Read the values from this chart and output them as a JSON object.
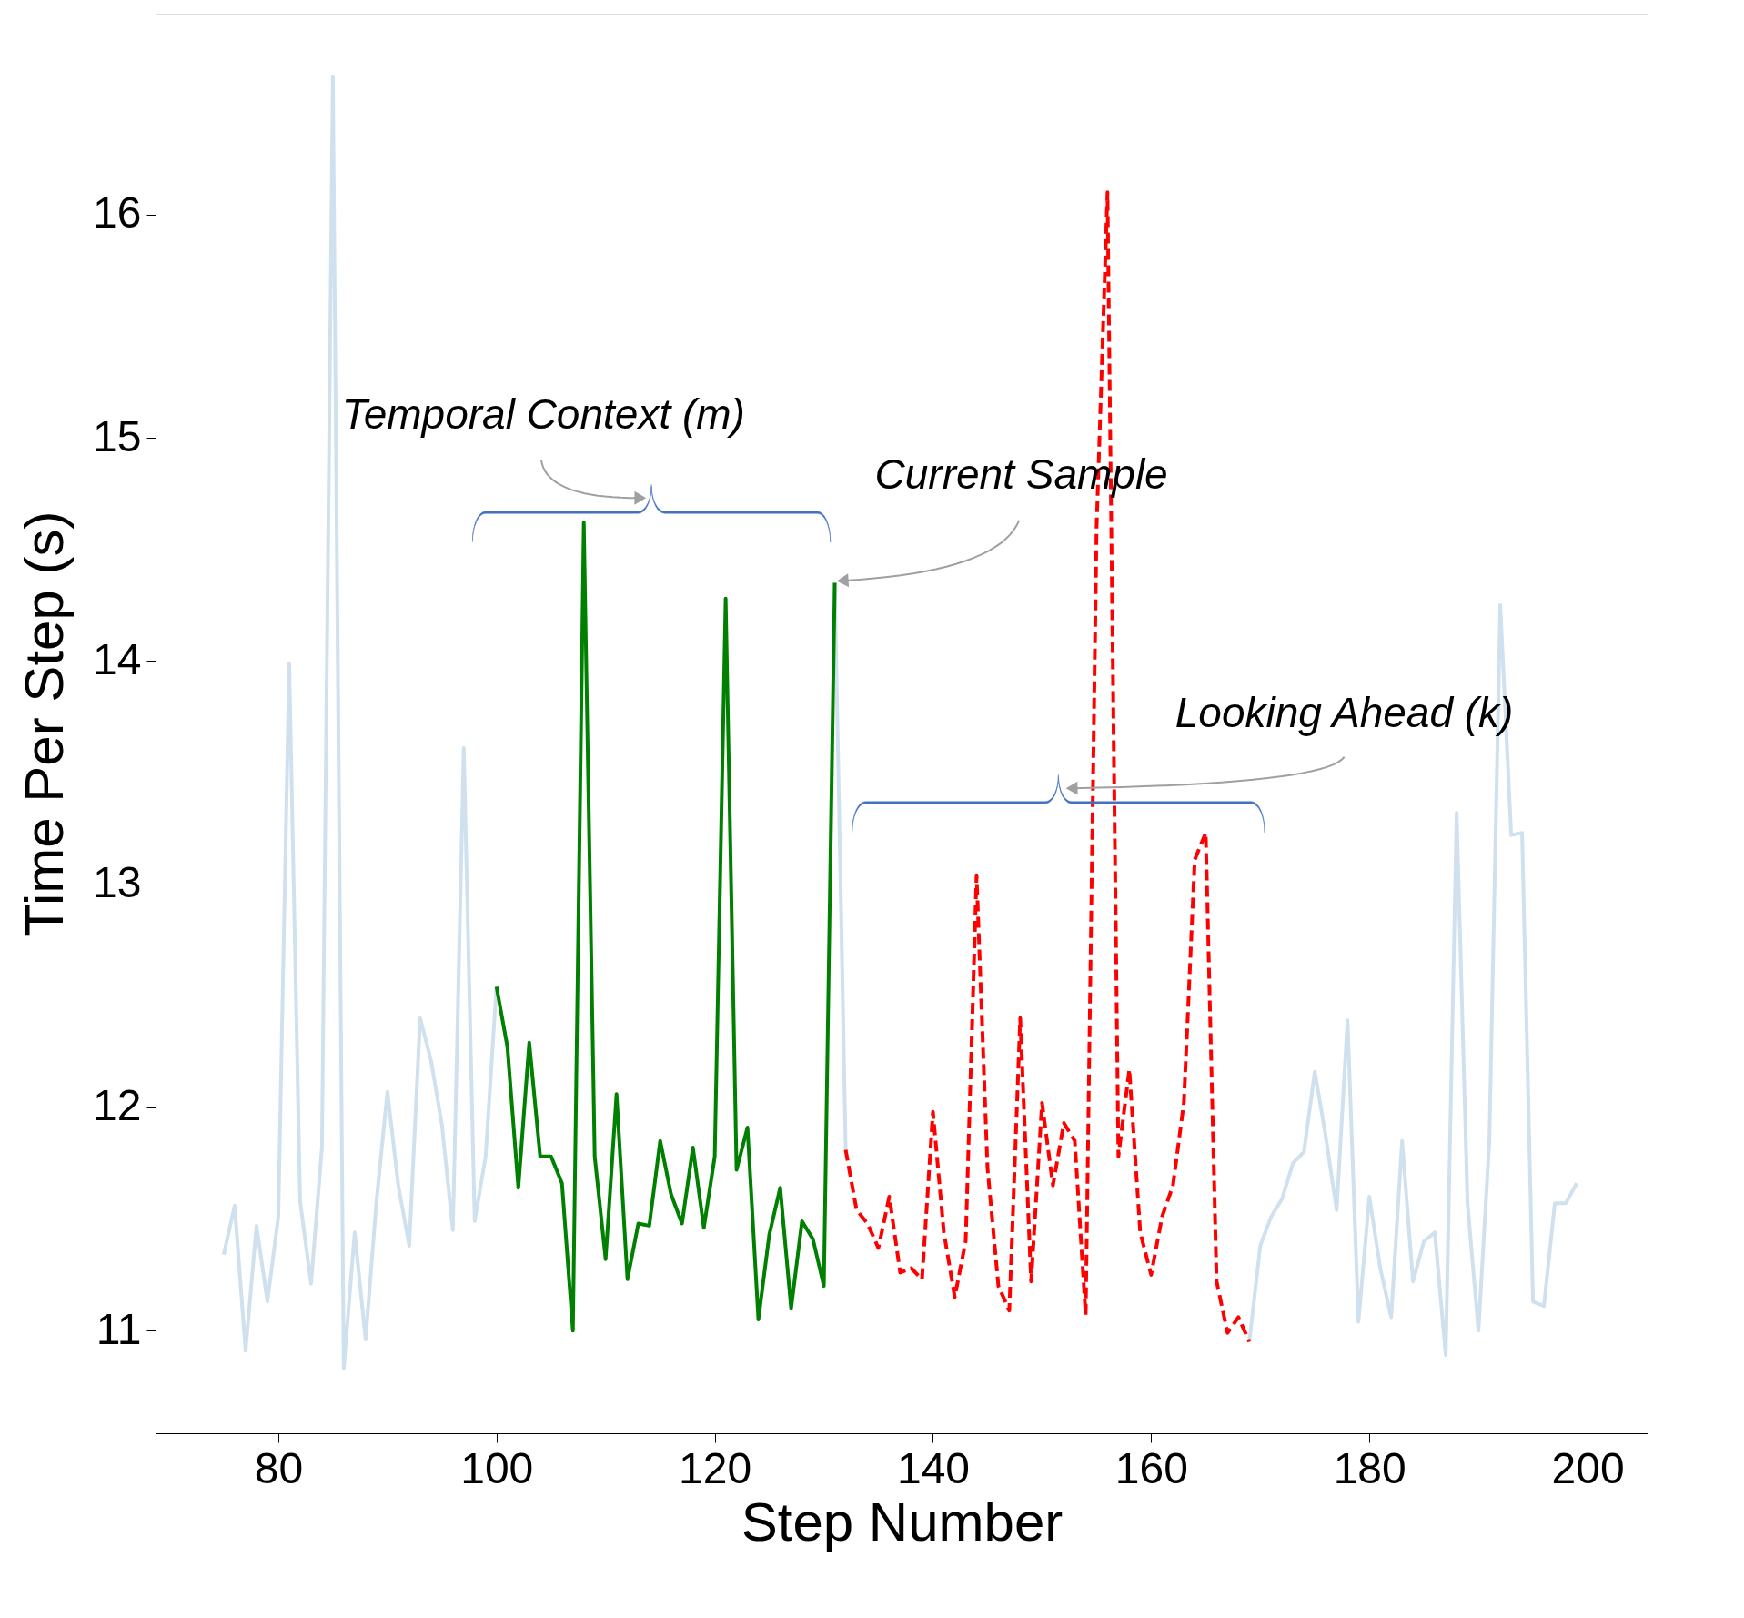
{
  "chart_data": {
    "type": "line",
    "xlabel": "Step Number",
    "ylabel": "Time Per Step (s)",
    "xlim": [
      68.75,
      205.5
    ],
    "ylim": [
      10.54,
      16.9
    ],
    "xticks": [
      80,
      100,
      120,
      140,
      160,
      180,
      200
    ],
    "yticks": [
      11,
      12,
      13,
      14,
      15,
      16
    ],
    "grid": false,
    "series": [
      {
        "color": "#cfe1ee",
        "line_style": "solid",
        "x": [
          75,
          76,
          77,
          78,
          79,
          80,
          81,
          82,
          83,
          84,
          85,
          86,
          87,
          88,
          89,
          90,
          91,
          92,
          93,
          94,
          95,
          96,
          97,
          98,
          99,
          100,
          101,
          102,
          103,
          104,
          105,
          106,
          107,
          108,
          109,
          110,
          111,
          112,
          113,
          114,
          115,
          116,
          117,
          118,
          119,
          120,
          121,
          122,
          123,
          124,
          125,
          126,
          127,
          128,
          129,
          130,
          131,
          132,
          133,
          134,
          135,
          136,
          137,
          138,
          139,
          140,
          141,
          142,
          143,
          144,
          145,
          146,
          147,
          148,
          149,
          150,
          151,
          152,
          153,
          154,
          155,
          156,
          157,
          158,
          159,
          160,
          161,
          162,
          163,
          164,
          165,
          166,
          167,
          168,
          169,
          170,
          171,
          172,
          173,
          174,
          175,
          176,
          177,
          178,
          179,
          180,
          181,
          182,
          183,
          184,
          185,
          186,
          187,
          188,
          189,
          190,
          191,
          192,
          193,
          194,
          195,
          196,
          197,
          198,
          199
        ],
        "values": [
          11.34,
          11.56,
          10.91,
          11.47,
          11.13,
          11.51,
          13.99,
          11.58,
          11.21,
          11.82,
          16.62,
          10.83,
          11.44,
          10.96,
          11.58,
          12.07,
          11.65,
          11.38,
          12.4,
          12.21,
          11.92,
          11.45,
          13.61,
          11.49,
          11.78,
          12.54,
          null,
          null,
          null,
          null,
          null,
          null,
          null,
          null,
          null,
          null,
          null,
          null,
          null,
          null,
          null,
          null,
          null,
          null,
          null,
          null,
          null,
          null,
          null,
          null,
          null,
          null,
          null,
          null,
          null,
          null,
          14.35,
          11.81,
          null,
          null,
          null,
          null,
          null,
          null,
          null,
          null,
          null,
          null,
          null,
          null,
          null,
          null,
          null,
          null,
          null,
          null,
          null,
          null,
          null,
          null,
          null,
          null,
          null,
          null,
          null,
          null,
          null,
          null,
          null,
          null,
          null,
          null,
          null,
          null,
          10.95,
          11.38,
          11.51,
          11.59,
          11.75,
          11.8,
          12.16,
          11.87,
          11.54,
          12.39,
          11.04,
          11.6,
          11.28,
          11.06,
          11.85,
          11.22,
          11.4,
          11.44,
          10.89,
          13.32,
          11.57,
          11.0,
          11.85,
          14.25,
          13.22,
          13.23,
          11.13,
          11.11,
          11.57,
          11.57,
          11.66
        ]
      },
      {
        "color": "#008000",
        "line_style": "solid",
        "x": [
          100,
          101,
          102,
          103,
          104,
          105,
          106,
          107,
          108,
          109,
          110,
          111,
          112,
          113,
          114,
          115,
          116,
          117,
          118,
          119,
          120,
          121,
          122,
          123,
          124,
          125,
          126,
          127,
          128,
          129,
          130,
          131
        ],
        "values": [
          12.54,
          12.27,
          11.64,
          12.29,
          11.78,
          11.78,
          11.66,
          11.0,
          14.62,
          11.78,
          11.32,
          12.06,
          11.23,
          11.48,
          11.47,
          11.85,
          11.61,
          11.48,
          11.82,
          11.46,
          11.78,
          14.28,
          11.72,
          11.91,
          11.05,
          11.43,
          11.64,
          11.1,
          11.49,
          11.41,
          11.2,
          14.35
        ]
      },
      {
        "color": "#ff0000",
        "line_style": "dashed",
        "x": [
          132,
          133,
          134,
          135,
          136,
          137,
          138,
          139,
          140,
          141,
          142,
          143,
          144,
          145,
          146,
          147,
          148,
          149,
          150,
          151,
          152,
          153,
          154,
          155,
          156,
          157,
          158,
          159,
          160,
          161,
          162,
          163,
          164,
          165,
          166,
          167,
          168,
          169
        ],
        "values": [
          11.81,
          11.54,
          11.48,
          11.37,
          11.6,
          11.26,
          11.28,
          11.23,
          11.98,
          11.44,
          11.15,
          11.4,
          13.04,
          11.73,
          11.2,
          11.09,
          12.4,
          11.22,
          12.02,
          11.65,
          11.93,
          11.85,
          11.07,
          14.6,
          16.1,
          11.78,
          12.17,
          11.44,
          11.25,
          11.51,
          11.65,
          12.02,
          13.11,
          13.23,
          11.22,
          10.99,
          11.06,
          10.95
        ]
      }
    ],
    "annotations": [
      "Temporal Context (m)",
      {
        "text": "Current Sample",
        "x": 131,
        "y": 14.35
      },
      "Looking Ahead (k)"
    ]
  }
}
